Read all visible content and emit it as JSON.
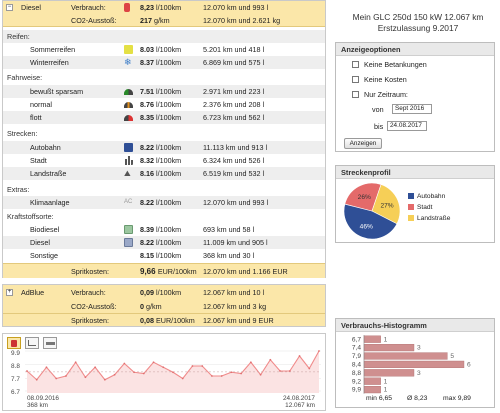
{
  "diesel": {
    "fuel_name": "Diesel",
    "consumption_label": "Verbrauch:",
    "consumption_value": "8,23",
    "consumption_unit": "l/100km",
    "consumption_totals": "12.070 km und 993 l",
    "co2_label": "CO2-Ausstoß:",
    "co2_value": "217",
    "co2_unit": "g/km",
    "co2_totals": "12.070 km und 2.621 kg"
  },
  "sections": {
    "tires": {
      "title": "Reifen:",
      "rows": [
        {
          "label": "Sommerreifen",
          "value": "8.03",
          "unit": "l/100km",
          "totals": "5.201 km und 418 l"
        },
        {
          "label": "Winterreifen",
          "value": "8.37",
          "unit": "l/100km",
          "totals": "6.869 km und 575 l"
        }
      ]
    },
    "driving": {
      "title": "Fahrweise:",
      "rows": [
        {
          "label": "bewußt sparsam",
          "value": "7.51",
          "unit": "l/100km",
          "totals": "2.971 km und 223 l"
        },
        {
          "label": "normal",
          "value": "8.76",
          "unit": "l/100km",
          "totals": "2.376 km und 208 l"
        },
        {
          "label": "flott",
          "value": "8.35",
          "unit": "l/100km",
          "totals": "6.723 km und 562 l"
        }
      ]
    },
    "roads": {
      "title": "Strecken:",
      "rows": [
        {
          "label": "Autobahn",
          "value": "8.22",
          "unit": "l/100km",
          "totals": "11.113 km und 913 l"
        },
        {
          "label": "Stadt",
          "value": "8.32",
          "unit": "l/100km",
          "totals": "6.324 km und 526 l"
        },
        {
          "label": "Landstraße",
          "value": "8.16",
          "unit": "l/100km",
          "totals": "6.519 km und 532 l"
        }
      ]
    },
    "extras": {
      "title": "Extras:",
      "rows": [
        {
          "label": "Klimaanlage",
          "value": "8.22",
          "unit": "l/100km",
          "totals": "12.070 km und 993 l"
        }
      ]
    },
    "fuel_types": {
      "title": "Kraftstoffsorte:",
      "rows": [
        {
          "label": "Biodiesel",
          "value": "8.39",
          "unit": "l/100km",
          "totals": "693 km und 58 l"
        },
        {
          "label": "Diesel",
          "value": "8.22",
          "unit": "l/100km",
          "totals": "11.009 km und 905 l"
        },
        {
          "label": "Sonstige",
          "value": "8.15",
          "unit": "l/100km",
          "totals": "368 km und 30 l"
        }
      ]
    }
  },
  "fuel_costs": {
    "label": "Spritkosten:",
    "value": "9,66",
    "unit": "EUR/100km",
    "totals": "12.070 km und 1.166 EUR"
  },
  "adblue": {
    "name": "AdBlue",
    "consumption_label": "Verbrauch:",
    "consumption_value": "0,09",
    "consumption_unit": "l/100km",
    "consumption_totals": "12.067 km und 10 l",
    "co2_label": "CO2-Ausstoß:",
    "co2_value": "0",
    "co2_unit": "g/km",
    "co2_totals": "12.067 km und 3 kg",
    "cost_label": "Spritkosten:",
    "cost_value": "0,08",
    "cost_unit": "EUR/100km",
    "cost_totals": "12.067 km und 9 EUR"
  },
  "car": {
    "title_line1": "Mein GLC 250d 150 kW   12.067 km",
    "title_line2": "Erstzulassung 9.2017"
  },
  "options": {
    "title": "Anzeigeoptionen",
    "no_refuels": "Keine Betankungen",
    "no_costs": "Keine Kosten",
    "time_range_only": "Nur Zeitraum:",
    "from_label": "von",
    "from_value": "Sept 2016",
    "to_label": "bis",
    "to_value": "24.08.2017",
    "show_button": "Anzeigen"
  },
  "route_profile": {
    "title": "Streckenprofil",
    "legend": [
      "Autobahn",
      "Stadt",
      "Landstraße"
    ],
    "colors": [
      "#2f4f96",
      "#e46a6a",
      "#f6cf57"
    ]
  },
  "histogram": {
    "title": "Verbrauchs-Histogramm",
    "footer_min": "min 6,65",
    "footer_avg": "Ø 8,23",
    "footer_max": "max 9,89"
  },
  "consumption_chart": {
    "start_date": "08.09.2016",
    "start_km": "368 km",
    "end_date": "24.08.2017",
    "end_km": "12.067 km",
    "accent_color": "#f08a8a"
  },
  "chart_data": [
    {
      "type": "pie",
      "title": "Streckenprofil",
      "categories": [
        "Autobahn",
        "Stadt",
        "Landstraße"
      ],
      "values": [
        46,
        26,
        27
      ],
      "labels": [
        "46%",
        "26%",
        "27%"
      ],
      "legend": "right"
    },
    {
      "type": "bar",
      "orientation": "horizontal",
      "title": "Verbrauchs-Histogramm",
      "categories": [
        "6,7",
        "7,4",
        "7,9",
        "8,4",
        "8,8",
        "9,2",
        "9,9"
      ],
      "values": [
        1,
        3,
        5,
        6,
        3,
        1,
        1
      ],
      "xlim": [
        0,
        6
      ]
    },
    {
      "type": "line",
      "x_start": "08.09.2016",
      "x_end": "24.08.2017",
      "ylim": [
        6.7,
        9.9
      ],
      "yticks": [
        "9.9",
        "8.8",
        "7.7",
        "6.7"
      ],
      "values": [
        8.3,
        7.6,
        8.6,
        7.7,
        7.9,
        9.0,
        7.8,
        8.6,
        7.6,
        8.0,
        8.9,
        8.2,
        8.1,
        9.0,
        8.6,
        8.2,
        7.7,
        8.7,
        8.7,
        7.9,
        7.9,
        8.2,
        8.1,
        9.0,
        8.0,
        9.2,
        8.3,
        8.3,
        9.5,
        8.5,
        9.9
      ]
    }
  ]
}
